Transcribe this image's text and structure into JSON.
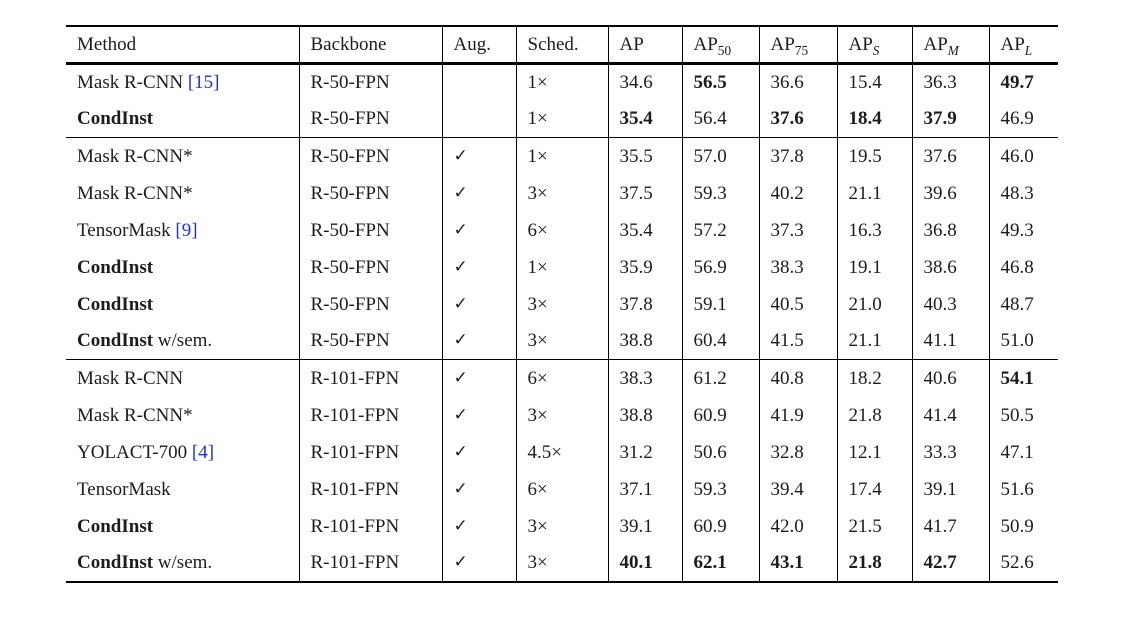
{
  "table": {
    "citation_color": "#2233cc",
    "checkmark": "✓",
    "columns": [
      {
        "label": "Method"
      },
      {
        "label": "Backbone"
      },
      {
        "label": "Aug."
      },
      {
        "label": "Sched."
      },
      {
        "label": "AP"
      },
      {
        "label": "AP",
        "sub": "50",
        "italicSub": false
      },
      {
        "label": "AP",
        "sub": "75",
        "italicSub": false
      },
      {
        "label": "AP",
        "sub": "S",
        "italicSub": true
      },
      {
        "label": "AP",
        "sub": "M",
        "italicSub": true
      },
      {
        "label": "AP",
        "sub": "L",
        "italicSub": true
      }
    ],
    "rows": [
      {
        "method": {
          "text": "Mask R-CNN",
          "bold": false,
          "suffix": "",
          "cite": "[15]"
        },
        "backbone": "R-50-FPN",
        "aug": false,
        "sched": "1×",
        "values": [
          {
            "t": "34.6",
            "b": false
          },
          {
            "t": "56.5",
            "b": true
          },
          {
            "t": "36.6",
            "b": false
          },
          {
            "t": "15.4",
            "b": false
          },
          {
            "t": "36.3",
            "b": false
          },
          {
            "t": "49.7",
            "b": true
          }
        ],
        "groupEnd": false
      },
      {
        "method": {
          "text": "CondInst",
          "bold": true,
          "suffix": "",
          "cite": ""
        },
        "backbone": "R-50-FPN",
        "aug": false,
        "sched": "1×",
        "values": [
          {
            "t": "35.4",
            "b": true
          },
          {
            "t": "56.4",
            "b": false
          },
          {
            "t": "37.6",
            "b": true
          },
          {
            "t": "18.4",
            "b": true
          },
          {
            "t": "37.9",
            "b": true
          },
          {
            "t": "46.9",
            "b": false
          }
        ],
        "groupEnd": true
      },
      {
        "method": {
          "text": "Mask R-CNN*",
          "bold": false,
          "suffix": "",
          "cite": ""
        },
        "backbone": "R-50-FPN",
        "aug": true,
        "sched": "1×",
        "values": [
          {
            "t": "35.5",
            "b": false
          },
          {
            "t": "57.0",
            "b": false
          },
          {
            "t": "37.8",
            "b": false
          },
          {
            "t": "19.5",
            "b": false
          },
          {
            "t": "37.6",
            "b": false
          },
          {
            "t": "46.0",
            "b": false
          }
        ],
        "groupEnd": false
      },
      {
        "method": {
          "text": "Mask R-CNN*",
          "bold": false,
          "suffix": "",
          "cite": ""
        },
        "backbone": "R-50-FPN",
        "aug": true,
        "sched": "3×",
        "values": [
          {
            "t": "37.5",
            "b": false
          },
          {
            "t": "59.3",
            "b": false
          },
          {
            "t": "40.2",
            "b": false
          },
          {
            "t": "21.1",
            "b": false
          },
          {
            "t": "39.6",
            "b": false
          },
          {
            "t": "48.3",
            "b": false
          }
        ],
        "groupEnd": false
      },
      {
        "method": {
          "text": "TensorMask",
          "bold": false,
          "suffix": "",
          "cite": "[9]"
        },
        "backbone": "R-50-FPN",
        "aug": true,
        "sched": "6×",
        "values": [
          {
            "t": "35.4",
            "b": false
          },
          {
            "t": "57.2",
            "b": false
          },
          {
            "t": "37.3",
            "b": false
          },
          {
            "t": "16.3",
            "b": false
          },
          {
            "t": "36.8",
            "b": false
          },
          {
            "t": "49.3",
            "b": false
          }
        ],
        "groupEnd": false
      },
      {
        "method": {
          "text": "CondInst",
          "bold": true,
          "suffix": "",
          "cite": ""
        },
        "backbone": "R-50-FPN",
        "aug": true,
        "sched": "1×",
        "values": [
          {
            "t": "35.9",
            "b": false
          },
          {
            "t": "56.9",
            "b": false
          },
          {
            "t": "38.3",
            "b": false
          },
          {
            "t": "19.1",
            "b": false
          },
          {
            "t": "38.6",
            "b": false
          },
          {
            "t": "46.8",
            "b": false
          }
        ],
        "groupEnd": false
      },
      {
        "method": {
          "text": "CondInst",
          "bold": true,
          "suffix": "",
          "cite": ""
        },
        "backbone": "R-50-FPN",
        "aug": true,
        "sched": "3×",
        "values": [
          {
            "t": "37.8",
            "b": false
          },
          {
            "t": "59.1",
            "b": false
          },
          {
            "t": "40.5",
            "b": false
          },
          {
            "t": "21.0",
            "b": false
          },
          {
            "t": "40.3",
            "b": false
          },
          {
            "t": "48.7",
            "b": false
          }
        ],
        "groupEnd": false
      },
      {
        "method": {
          "text": "CondInst",
          "bold": true,
          "suffix": " w/sem.",
          "cite": ""
        },
        "backbone": "R-50-FPN",
        "aug": true,
        "sched": "3×",
        "values": [
          {
            "t": "38.8",
            "b": false
          },
          {
            "t": "60.4",
            "b": false
          },
          {
            "t": "41.5",
            "b": false
          },
          {
            "t": "21.1",
            "b": false
          },
          {
            "t": "41.1",
            "b": false
          },
          {
            "t": "51.0",
            "b": false
          }
        ],
        "groupEnd": true
      },
      {
        "method": {
          "text": "Mask R-CNN",
          "bold": false,
          "suffix": "",
          "cite": ""
        },
        "backbone": "R-101-FPN",
        "aug": true,
        "sched": "6×",
        "values": [
          {
            "t": "38.3",
            "b": false
          },
          {
            "t": "61.2",
            "b": false
          },
          {
            "t": "40.8",
            "b": false
          },
          {
            "t": "18.2",
            "b": false
          },
          {
            "t": "40.6",
            "b": false
          },
          {
            "t": "54.1",
            "b": true
          }
        ],
        "groupEnd": false
      },
      {
        "method": {
          "text": "Mask R-CNN*",
          "bold": false,
          "suffix": "",
          "cite": ""
        },
        "backbone": "R-101-FPN",
        "aug": true,
        "sched": "3×",
        "values": [
          {
            "t": "38.8",
            "b": false
          },
          {
            "t": "60.9",
            "b": false
          },
          {
            "t": "41.9",
            "b": false
          },
          {
            "t": "21.8",
            "b": false
          },
          {
            "t": "41.4",
            "b": false
          },
          {
            "t": "50.5",
            "b": false
          }
        ],
        "groupEnd": false
      },
      {
        "method": {
          "text": "YOLACT-700",
          "bold": false,
          "suffix": "",
          "cite": "[4]"
        },
        "backbone": "R-101-FPN",
        "aug": true,
        "sched": "4.5×",
        "values": [
          {
            "t": "31.2",
            "b": false
          },
          {
            "t": "50.6",
            "b": false
          },
          {
            "t": "32.8",
            "b": false
          },
          {
            "t": "12.1",
            "b": false
          },
          {
            "t": "33.3",
            "b": false
          },
          {
            "t": "47.1",
            "b": false
          }
        ],
        "groupEnd": false
      },
      {
        "method": {
          "text": "TensorMask",
          "bold": false,
          "suffix": "",
          "cite": ""
        },
        "backbone": "R-101-FPN",
        "aug": true,
        "sched": "6×",
        "values": [
          {
            "t": "37.1",
            "b": false
          },
          {
            "t": "59.3",
            "b": false
          },
          {
            "t": "39.4",
            "b": false
          },
          {
            "t": "17.4",
            "b": false
          },
          {
            "t": "39.1",
            "b": false
          },
          {
            "t": "51.6",
            "b": false
          }
        ],
        "groupEnd": false
      },
      {
        "method": {
          "text": "CondInst",
          "bold": true,
          "suffix": "",
          "cite": ""
        },
        "backbone": "R-101-FPN",
        "aug": true,
        "sched": "3×",
        "values": [
          {
            "t": "39.1",
            "b": false
          },
          {
            "t": "60.9",
            "b": false
          },
          {
            "t": "42.0",
            "b": false
          },
          {
            "t": "21.5",
            "b": false
          },
          {
            "t": "41.7",
            "b": false
          },
          {
            "t": "50.9",
            "b": false
          }
        ],
        "groupEnd": false
      },
      {
        "method": {
          "text": "CondInst",
          "bold": true,
          "suffix": " w/sem.",
          "cite": ""
        },
        "backbone": "R-101-FPN",
        "aug": true,
        "sched": "3×",
        "values": [
          {
            "t": "40.1",
            "b": true
          },
          {
            "t": "62.1",
            "b": true
          },
          {
            "t": "43.1",
            "b": true
          },
          {
            "t": "21.8",
            "b": true
          },
          {
            "t": "42.7",
            "b": true
          },
          {
            "t": "52.6",
            "b": false
          }
        ],
        "groupEnd": false
      }
    ]
  }
}
